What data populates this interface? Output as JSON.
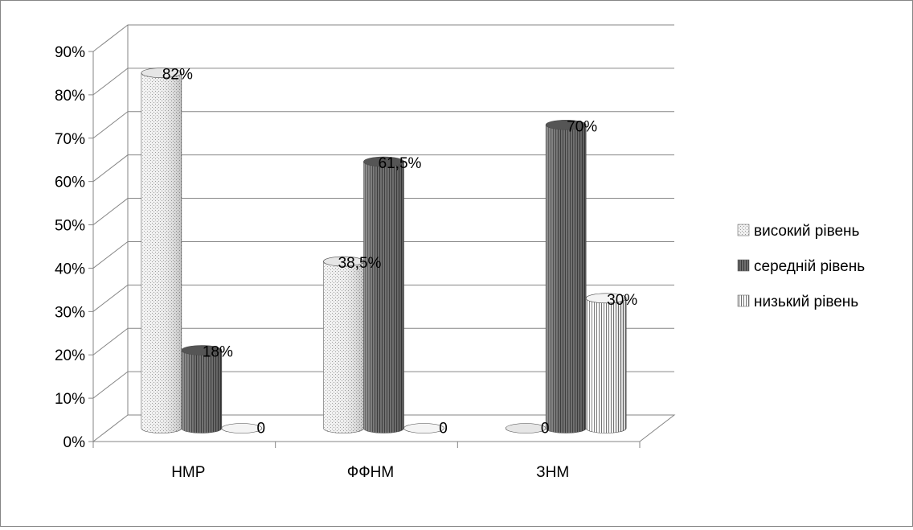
{
  "chart_data": {
    "type": "bar",
    "style": "3d-cylinder-clustered",
    "categories": [
      "НМР",
      "ФФНМ",
      "ЗНМ"
    ],
    "series": [
      {
        "name": "високий рівень",
        "values": [
          82,
          38.5,
          0
        ],
        "labels": [
          "82%",
          "38,5%",
          "0"
        ],
        "pattern": "dots"
      },
      {
        "name": "середній рівень",
        "values": [
          18,
          61.5,
          70
        ],
        "labels": [
          "18%",
          "61,5%",
          "70%"
        ],
        "pattern": "dark-vertical"
      },
      {
        "name": "низький рівень",
        "values": [
          0,
          0,
          30
        ],
        "labels": [
          "0",
          "0",
          "30%"
        ],
        "pattern": "vertical-stripes"
      }
    ],
    "yticks": [
      "0%",
      "10%",
      "20%",
      "30%",
      "40%",
      "50%",
      "60%",
      "70%",
      "80%",
      "90%"
    ],
    "ylim": [
      0,
      90
    ],
    "grid": true,
    "legend_position": "right",
    "title": "",
    "xlabel": "",
    "ylabel": ""
  }
}
